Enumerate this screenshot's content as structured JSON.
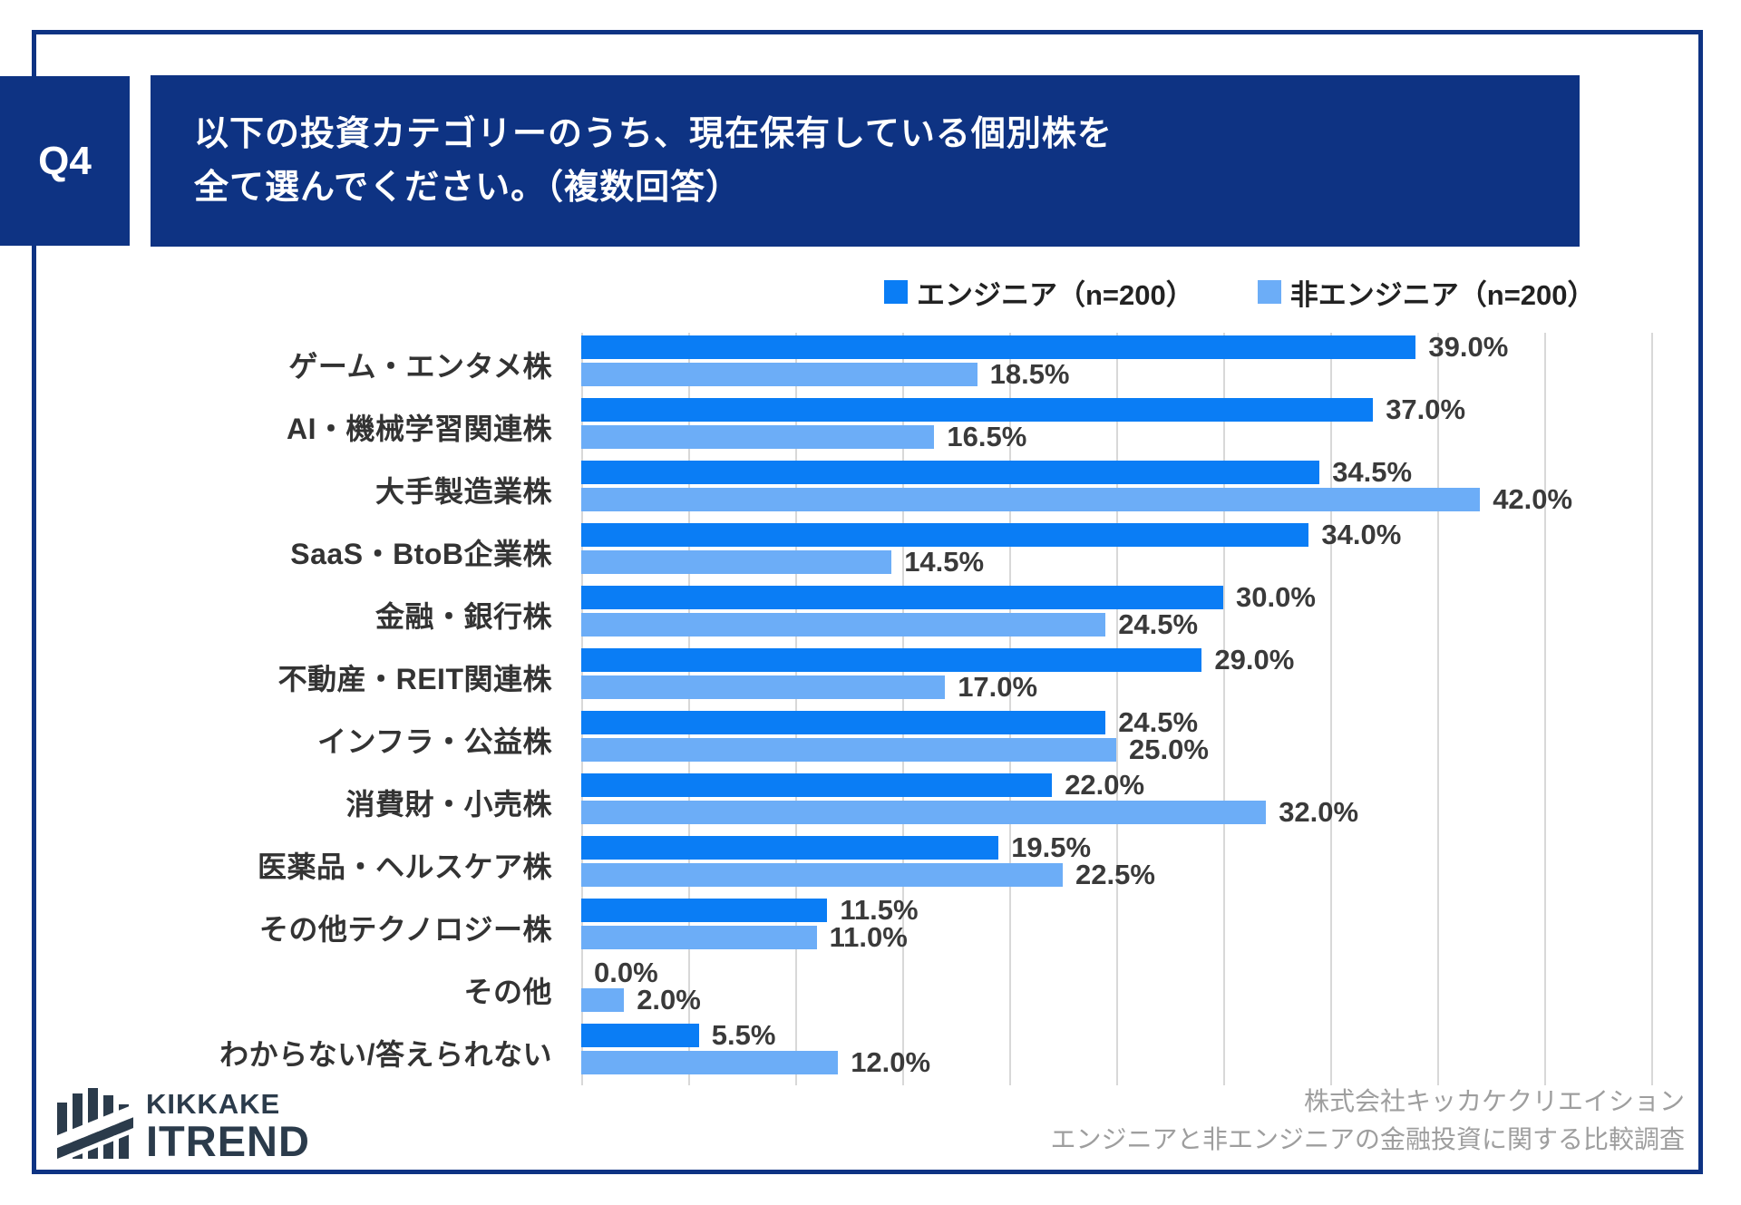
{
  "q_label": "Q4",
  "header": {
    "title_line1": "以下の投資カテゴリーのうち、現在保有している個別株を",
    "title_line2": "全て選んでください。（複数回答）"
  },
  "legend": [
    {
      "label": "エンジニア（n=200）",
      "color": "#0a7df5"
    },
    {
      "label": "非エンジニア（n=200）",
      "color": "#6cadf7"
    }
  ],
  "chart_data": {
    "type": "bar",
    "orientation": "horizontal",
    "title": "以下の投資カテゴリーのうち、現在保有している個別株を全て選んでください。（複数回答）",
    "categories": [
      "ゲーム・エンタメ株",
      "AI・機械学習関連株",
      "大手製造業株",
      "SaaS・BtoB企業株",
      "金融・銀行株",
      "不動産・REIT関連株",
      "インフラ・公益株",
      "消費財・小売株",
      "医薬品・ヘルスケア株",
      "その他テクノロジー株",
      "その他",
      "わからない/答えられない"
    ],
    "series": [
      {
        "name": "エンジニア（n=200）",
        "color": "#0a7df5",
        "values": [
          39.0,
          37.0,
          34.5,
          34.0,
          30.0,
          29.0,
          24.5,
          22.0,
          19.5,
          11.5,
          0.0,
          5.5
        ]
      },
      {
        "name": "非エンジニア（n=200）",
        "color": "#6cadf7",
        "values": [
          18.5,
          16.5,
          42.0,
          14.5,
          24.5,
          17.0,
          25.0,
          32.0,
          22.5,
          11.0,
          2.0,
          12.0
        ]
      }
    ],
    "value_suffix": "%",
    "value_decimals": 1,
    "xlim": [
      0,
      50
    ],
    "gridline_interval": 5,
    "grid": true,
    "legend_position": "top-right"
  },
  "footer": {
    "logo_line1": "KIKKAKE",
    "logo_line2": "ITREND",
    "source_line1": "株式会社キッカケクリエイション",
    "source_line2": "エンジニアと非エンジニアの金融投資に関する比較調査"
  },
  "colors": {
    "navy": "#0e3383",
    "engineer_blue": "#0a7df5",
    "non_engineer_blue": "#6cadf7",
    "gridline": "#d8d8d8",
    "value_text": "#3a3a3a",
    "footer_text": "#9e9e9e",
    "logo_dark": "#2b3b4b"
  }
}
